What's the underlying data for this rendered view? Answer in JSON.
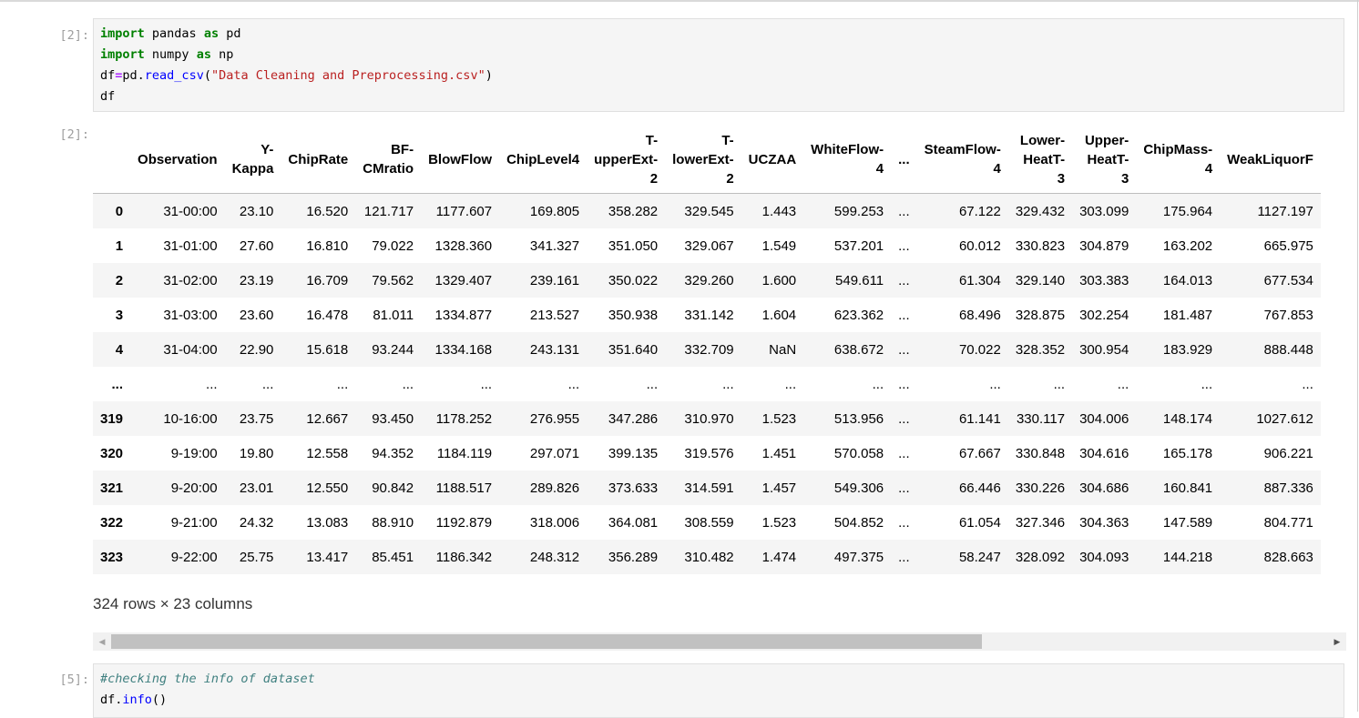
{
  "cells": [
    {
      "prompt_in": "[2]:",
      "prompt_out": "[2]:"
    },
    {
      "prompt_in": "[5]:"
    }
  ],
  "code1": {
    "l1": {
      "kw1": "import",
      "t1": " pandas ",
      "kw2": "as",
      "t2": " pd"
    },
    "l2": {
      "kw1": "import",
      "t1": " numpy ",
      "kw2": "as",
      "t2": " np"
    },
    "l3": {
      "a": "df",
      "op": "=",
      "b": "pd.",
      "fn": "read_csv",
      "c": "(",
      "str": "\"Data Cleaning and Preprocessing.csv\"",
      "d": ")"
    },
    "l4": "df"
  },
  "code2": {
    "comment": "#checking the info of dataset",
    "l2a": "df.",
    "l2fn": "info",
    "l2b": "()"
  },
  "table": {
    "columns": [
      [
        "Observation"
      ],
      [
        "Y-",
        "Kappa"
      ],
      [
        "ChipRate"
      ],
      [
        "BF-",
        "CMratio"
      ],
      [
        "BlowFlow"
      ],
      [
        "ChipLevel4"
      ],
      [
        "T-",
        "upperExt-",
        "2"
      ],
      [
        "T-",
        "lowerExt-",
        "2"
      ],
      [
        "UCZAA"
      ],
      [
        "WhiteFlow-",
        "4"
      ],
      [
        "..."
      ],
      [
        "SteamFlow-",
        "4"
      ],
      [
        "Lower-",
        "HeatT-",
        "3"
      ],
      [
        "Upper-",
        "HeatT-",
        "3"
      ],
      [
        "ChipMass-",
        "4"
      ],
      [
        "WeakLiquorF"
      ]
    ],
    "rows": [
      [
        "0",
        "31-00:00",
        "23.10",
        "16.520",
        "121.717",
        "1177.607",
        "169.805",
        "358.282",
        "329.545",
        "1.443",
        "599.253",
        "...",
        "67.122",
        "329.432",
        "303.099",
        "175.964",
        "1127.197"
      ],
      [
        "1",
        "31-01:00",
        "27.60",
        "16.810",
        "79.022",
        "1328.360",
        "341.327",
        "351.050",
        "329.067",
        "1.549",
        "537.201",
        "...",
        "60.012",
        "330.823",
        "304.879",
        "163.202",
        "665.975"
      ],
      [
        "2",
        "31-02:00",
        "23.19",
        "16.709",
        "79.562",
        "1329.407",
        "239.161",
        "350.022",
        "329.260",
        "1.600",
        "549.611",
        "...",
        "61.304",
        "329.140",
        "303.383",
        "164.013",
        "677.534"
      ],
      [
        "3",
        "31-03:00",
        "23.60",
        "16.478",
        "81.011",
        "1334.877",
        "213.527",
        "350.938",
        "331.142",
        "1.604",
        "623.362",
        "...",
        "68.496",
        "328.875",
        "302.254",
        "181.487",
        "767.853"
      ],
      [
        "4",
        "31-04:00",
        "22.90",
        "15.618",
        "93.244",
        "1334.168",
        "243.131",
        "351.640",
        "332.709",
        "NaN",
        "638.672",
        "...",
        "70.022",
        "328.352",
        "300.954",
        "183.929",
        "888.448"
      ],
      [
        "...",
        "...",
        "...",
        "...",
        "...",
        "...",
        "...",
        "...",
        "...",
        "...",
        "...",
        "...",
        "...",
        "...",
        "...",
        "...",
        "..."
      ],
      [
        "319",
        "10-16:00",
        "23.75",
        "12.667",
        "93.450",
        "1178.252",
        "276.955",
        "347.286",
        "310.970",
        "1.523",
        "513.956",
        "...",
        "61.141",
        "330.117",
        "304.006",
        "148.174",
        "1027.612"
      ],
      [
        "320",
        "9-19:00",
        "19.80",
        "12.558",
        "94.352",
        "1184.119",
        "297.071",
        "399.135",
        "319.576",
        "1.451",
        "570.058",
        "...",
        "67.667",
        "330.848",
        "304.616",
        "165.178",
        "906.221"
      ],
      [
        "321",
        "9-20:00",
        "23.01",
        "12.550",
        "90.842",
        "1188.517",
        "289.826",
        "373.633",
        "314.591",
        "1.457",
        "549.306",
        "...",
        "66.446",
        "330.226",
        "304.686",
        "160.841",
        "887.336"
      ],
      [
        "322",
        "9-21:00",
        "24.32",
        "13.083",
        "88.910",
        "1192.879",
        "318.006",
        "364.081",
        "308.559",
        "1.523",
        "504.852",
        "...",
        "61.054",
        "327.346",
        "304.363",
        "147.589",
        "804.771"
      ],
      [
        "323",
        "9-22:00",
        "25.75",
        "13.417",
        "85.451",
        "1186.342",
        "248.312",
        "356.289",
        "310.482",
        "1.474",
        "497.375",
        "...",
        "58.247",
        "328.092",
        "304.093",
        "144.218",
        "828.663"
      ]
    ],
    "shape": "324 rows × 23 columns"
  }
}
